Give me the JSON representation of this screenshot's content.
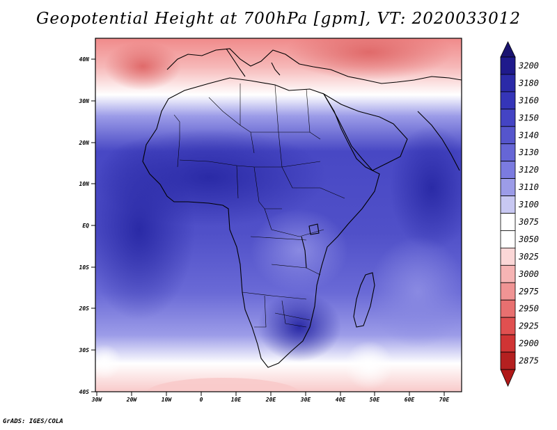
{
  "title": "Geopotential Height at 700hPa [gpm], VT: 2020033012",
  "credit": "GrADS: IGES/COLA",
  "lat_labels": [
    "40N",
    "30N",
    "20N",
    "10N",
    "EQ",
    "10S",
    "20S",
    "30S",
    "40S"
  ],
  "lon_labels": [
    "30W",
    "20W",
    "10W",
    "0",
    "10E",
    "20E",
    "30E",
    "40E",
    "50E",
    "60E",
    "70E"
  ],
  "colorbar": {
    "levels": [
      "3200",
      "3180",
      "3160",
      "3150",
      "3140",
      "3130",
      "3120",
      "3110",
      "3100",
      "3075",
      "3050",
      "3025",
      "3000",
      "2975",
      "2950",
      "2925",
      "2900",
      "2875"
    ],
    "colors": [
      "#1f1a8c",
      "#2b2aa8",
      "#3535b8",
      "#4444c4",
      "#5555cc",
      "#6666d6",
      "#7b7be0",
      "#9c9ce8",
      "#c8c8f2",
      "#ffffff",
      "#ffffff",
      "#fbd7d7",
      "#f6b4b4",
      "#f09494",
      "#e87070",
      "#e05050",
      "#d03434",
      "#b42020"
    ],
    "top_arrow_color": "#1a1470",
    "bottom_arrow_color": "#b01818"
  }
}
